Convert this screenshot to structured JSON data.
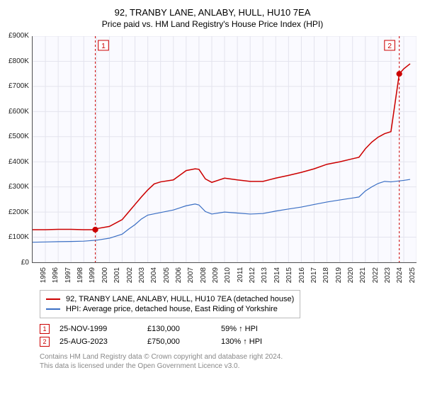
{
  "title_line1": "92, TRANBY LANE, ANLABY, HULL, HU10 7EA",
  "title_line2": "Price paid vs. HM Land Registry's House Price Index (HPI)",
  "chart": {
    "type": "line",
    "background_color": "#fafaff",
    "grid_color": "#e4e4ee",
    "axis_color": "#555555",
    "text_color": "#222222",
    "ylim": [
      0,
      900000
    ],
    "ytick_step": 100000,
    "yticks": [
      "£900K",
      "£800K",
      "£700K",
      "£600K",
      "£500K",
      "£400K",
      "£300K",
      "£200K",
      "£100K",
      "£0"
    ],
    "xlim": [
      1995,
      2025
    ],
    "xticks": [
      "1995",
      "1996",
      "1997",
      "1998",
      "1999",
      "2000",
      "2001",
      "2002",
      "2003",
      "2004",
      "2005",
      "2006",
      "2007",
      "2008",
      "2009",
      "2010",
      "2011",
      "2012",
      "2013",
      "2014",
      "2015",
      "2016",
      "2017",
      "2018",
      "2019",
      "2020",
      "2021",
      "2022",
      "2023",
      "2024",
      "2025"
    ],
    "series": [
      {
        "id": "property",
        "label": "92, TRANBY LANE, ANLABY, HULL, HU10 7EA (detached house)",
        "color": "#cc0000",
        "line_width": 1.5,
        "points": [
          [
            1995,
            130
          ],
          [
            1996,
            130
          ],
          [
            1997,
            131
          ],
          [
            1998,
            131
          ],
          [
            1999,
            130
          ],
          [
            1999.9,
            130
          ],
          [
            2000,
            134
          ],
          [
            2001,
            143
          ],
          [
            2002,
            170
          ],
          [
            2002.5,
            200
          ],
          [
            2003,
            230
          ],
          [
            2003.5,
            260
          ],
          [
            2004,
            288
          ],
          [
            2004.5,
            312
          ],
          [
            2005,
            320
          ],
          [
            2006,
            328
          ],
          [
            2007,
            365
          ],
          [
            2007.7,
            372
          ],
          [
            2008,
            370
          ],
          [
            2008.5,
            332
          ],
          [
            2009,
            318
          ],
          [
            2010,
            335
          ],
          [
            2011,
            328
          ],
          [
            2012,
            322
          ],
          [
            2013,
            322
          ],
          [
            2014,
            335
          ],
          [
            2015,
            346
          ],
          [
            2016,
            358
          ],
          [
            2017,
            372
          ],
          [
            2018,
            390
          ],
          [
            2019,
            400
          ],
          [
            2020,
            412
          ],
          [
            2020.5,
            418
          ],
          [
            2021,
            452
          ],
          [
            2021.5,
            478
          ],
          [
            2022,
            498
          ],
          [
            2022.5,
            512
          ],
          [
            2023,
            520
          ],
          [
            2023.65,
            750
          ],
          [
            2024,
            770
          ],
          [
            2024.5,
            790
          ]
        ]
      },
      {
        "id": "hpi",
        "label": "HPI: Average price, detached house, East Riding of Yorkshire",
        "color": "#3b6fc4",
        "line_width": 1.2,
        "points": [
          [
            1995,
            80
          ],
          [
            1996,
            81
          ],
          [
            1997,
            82
          ],
          [
            1998,
            83
          ],
          [
            1999,
            84
          ],
          [
            2000,
            88
          ],
          [
            2001,
            96
          ],
          [
            2002,
            112
          ],
          [
            2002.5,
            132
          ],
          [
            2003,
            150
          ],
          [
            2003.5,
            172
          ],
          [
            2004,
            188
          ],
          [
            2005,
            198
          ],
          [
            2006,
            208
          ],
          [
            2007,
            225
          ],
          [
            2007.7,
            232
          ],
          [
            2008,
            228
          ],
          [
            2008.5,
            202
          ],
          [
            2009,
            192
          ],
          [
            2010,
            200
          ],
          [
            2011,
            196
          ],
          [
            2012,
            192
          ],
          [
            2013,
            194
          ],
          [
            2014,
            204
          ],
          [
            2015,
            212
          ],
          [
            2016,
            220
          ],
          [
            2017,
            230
          ],
          [
            2018,
            240
          ],
          [
            2019,
            248
          ],
          [
            2020,
            256
          ],
          [
            2020.5,
            260
          ],
          [
            2021,
            284
          ],
          [
            2021.5,
            300
          ],
          [
            2022,
            314
          ],
          [
            2022.5,
            322
          ],
          [
            2023,
            320
          ],
          [
            2024,
            326
          ],
          [
            2024.5,
            330
          ]
        ]
      }
    ],
    "sale_markers": [
      {
        "num": "1",
        "x": 1999.9,
        "y": 130,
        "color": "#cc0000"
      },
      {
        "num": "2",
        "x": 2023.65,
        "y": 750,
        "color": "#cc0000"
      }
    ],
    "marker_dashed_color": "#cc0000"
  },
  "legend": {
    "border_color": "#bbbbbb"
  },
  "sales": [
    {
      "num": "1",
      "date": "25-NOV-1999",
      "price": "£130,000",
      "pct": "59% ↑ HPI",
      "box_color": "#cc0000"
    },
    {
      "num": "2",
      "date": "25-AUG-2023",
      "price": "£750,000",
      "pct": "130% ↑ HPI",
      "box_color": "#cc0000"
    }
  ],
  "footnote_line1": "Contains HM Land Registry data © Crown copyright and database right 2024.",
  "footnote_line2": "This data is licensed under the Open Government Licence v3.0."
}
